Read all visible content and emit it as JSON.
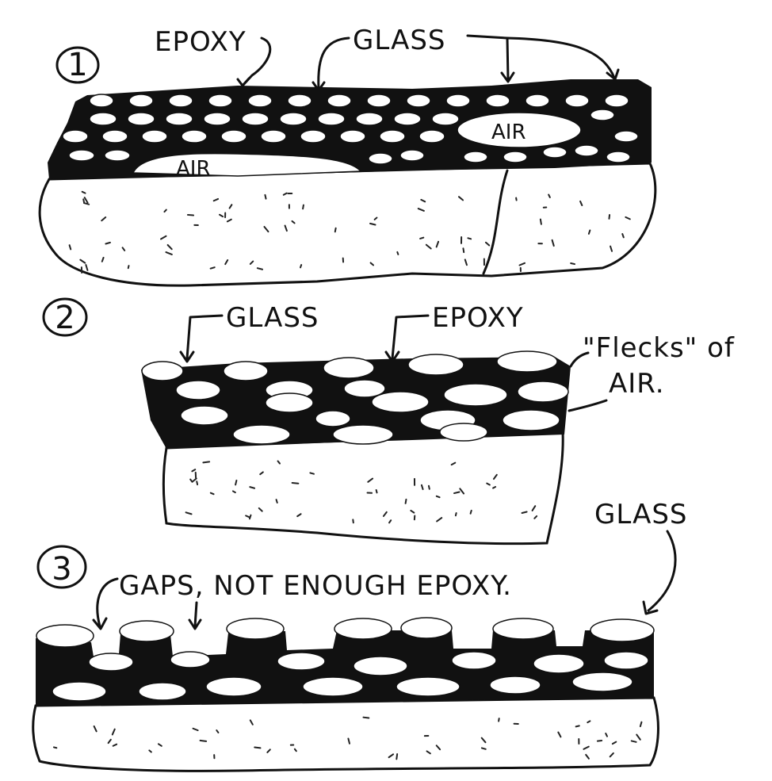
{
  "diagram": {
    "panel1": {
      "number": "1",
      "label_epoxy": "EPOXY",
      "label_glass": "GLASS",
      "label_air_left": "AIR",
      "label_air_right": "AIR"
    },
    "panel2": {
      "number": "2",
      "label_glass": "GLASS",
      "label_epoxy": "EPOXY",
      "label_flecks_line1": "\"Flecks\" of",
      "label_flecks_line2": "AIR."
    },
    "panel3": {
      "number": "3",
      "label_gaps": "GAPS, NOT ENOUGH EPOXY.",
      "label_glass": "GLASS"
    }
  },
  "colors": {
    "ink": "#111111",
    "paper": "#ffffff"
  }
}
